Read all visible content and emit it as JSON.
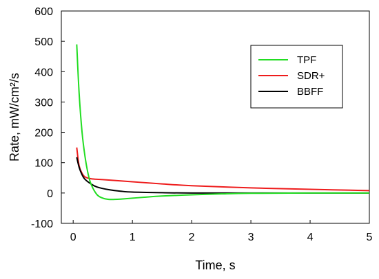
{
  "chart_data": {
    "type": "line",
    "title": "",
    "xlabel": "Time, s",
    "ylabel": "Rate, mW/cm²/s",
    "xlim": [
      -0.2,
      5
    ],
    "ylim": [
      -100,
      600
    ],
    "xticks": [
      0,
      1,
      2,
      3,
      4,
      5
    ],
    "yticks": [
      -100,
      0,
      100,
      200,
      300,
      400,
      500,
      600
    ],
    "grid": false,
    "legend_position": "top-right",
    "series": [
      {
        "name": "TPF",
        "color": "#22dd22",
        "x": [
          0.06,
          0.1,
          0.15,
          0.2,
          0.25,
          0.3,
          0.4,
          0.5,
          0.6,
          0.7,
          0.8,
          1.0,
          1.2,
          1.5,
          2.0,
          2.5,
          3.0,
          4.0,
          5.0
        ],
        "y": [
          490,
          330,
          200,
          120,
          65,
          30,
          -5,
          -17,
          -21,
          -21,
          -20,
          -17,
          -14,
          -10,
          -6,
          -3,
          -1,
          0,
          0
        ]
      },
      {
        "name": "SDR+",
        "color": "#ee1c1c",
        "x": [
          0.06,
          0.1,
          0.15,
          0.2,
          0.3,
          0.5,
          1.0,
          1.5,
          2.0,
          3.0,
          4.0,
          5.0
        ],
        "y": [
          150,
          90,
          65,
          53,
          47,
          44,
          37,
          30,
          24,
          17,
          12,
          8
        ]
      },
      {
        "name": "BBFF",
        "color": "#000000",
        "x": [
          0.06,
          0.1,
          0.15,
          0.2,
          0.3,
          0.4,
          0.6,
          0.8,
          1.0,
          1.5,
          2.0,
          3.0,
          4.0,
          5.0
        ],
        "y": [
          118,
          85,
          60,
          45,
          30,
          20,
          11,
          6,
          3,
          1,
          0,
          0,
          0,
          0
        ]
      }
    ]
  }
}
